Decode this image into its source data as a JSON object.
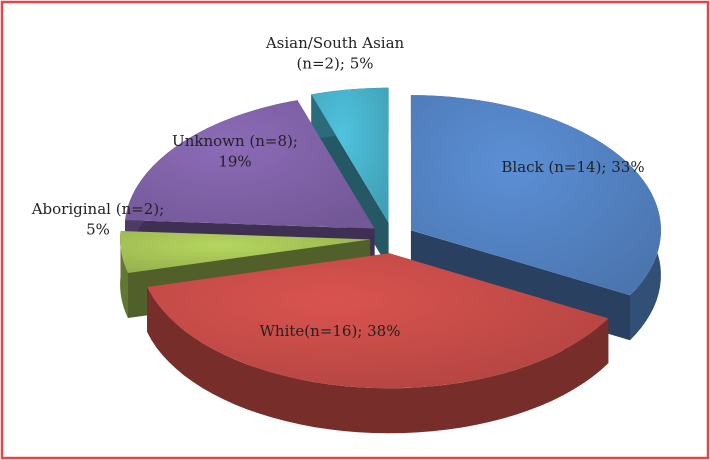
{
  "chart_data": {
    "type": "pie3d",
    "categories": [
      "Black (n=14); 33%",
      "White(n=16); 38%",
      "Aboriginal (n=2);\n5%",
      "Unknown (n=8);\n19%",
      "Asian/South Asian\n(n=2); 5%"
    ],
    "values": [
      33,
      38,
      5,
      19,
      5
    ],
    "colors": [
      "#5b8fd6",
      "#d9534f",
      "#b5d65e",
      "#8c6bb8",
      "#4fc3de"
    ]
  }
}
